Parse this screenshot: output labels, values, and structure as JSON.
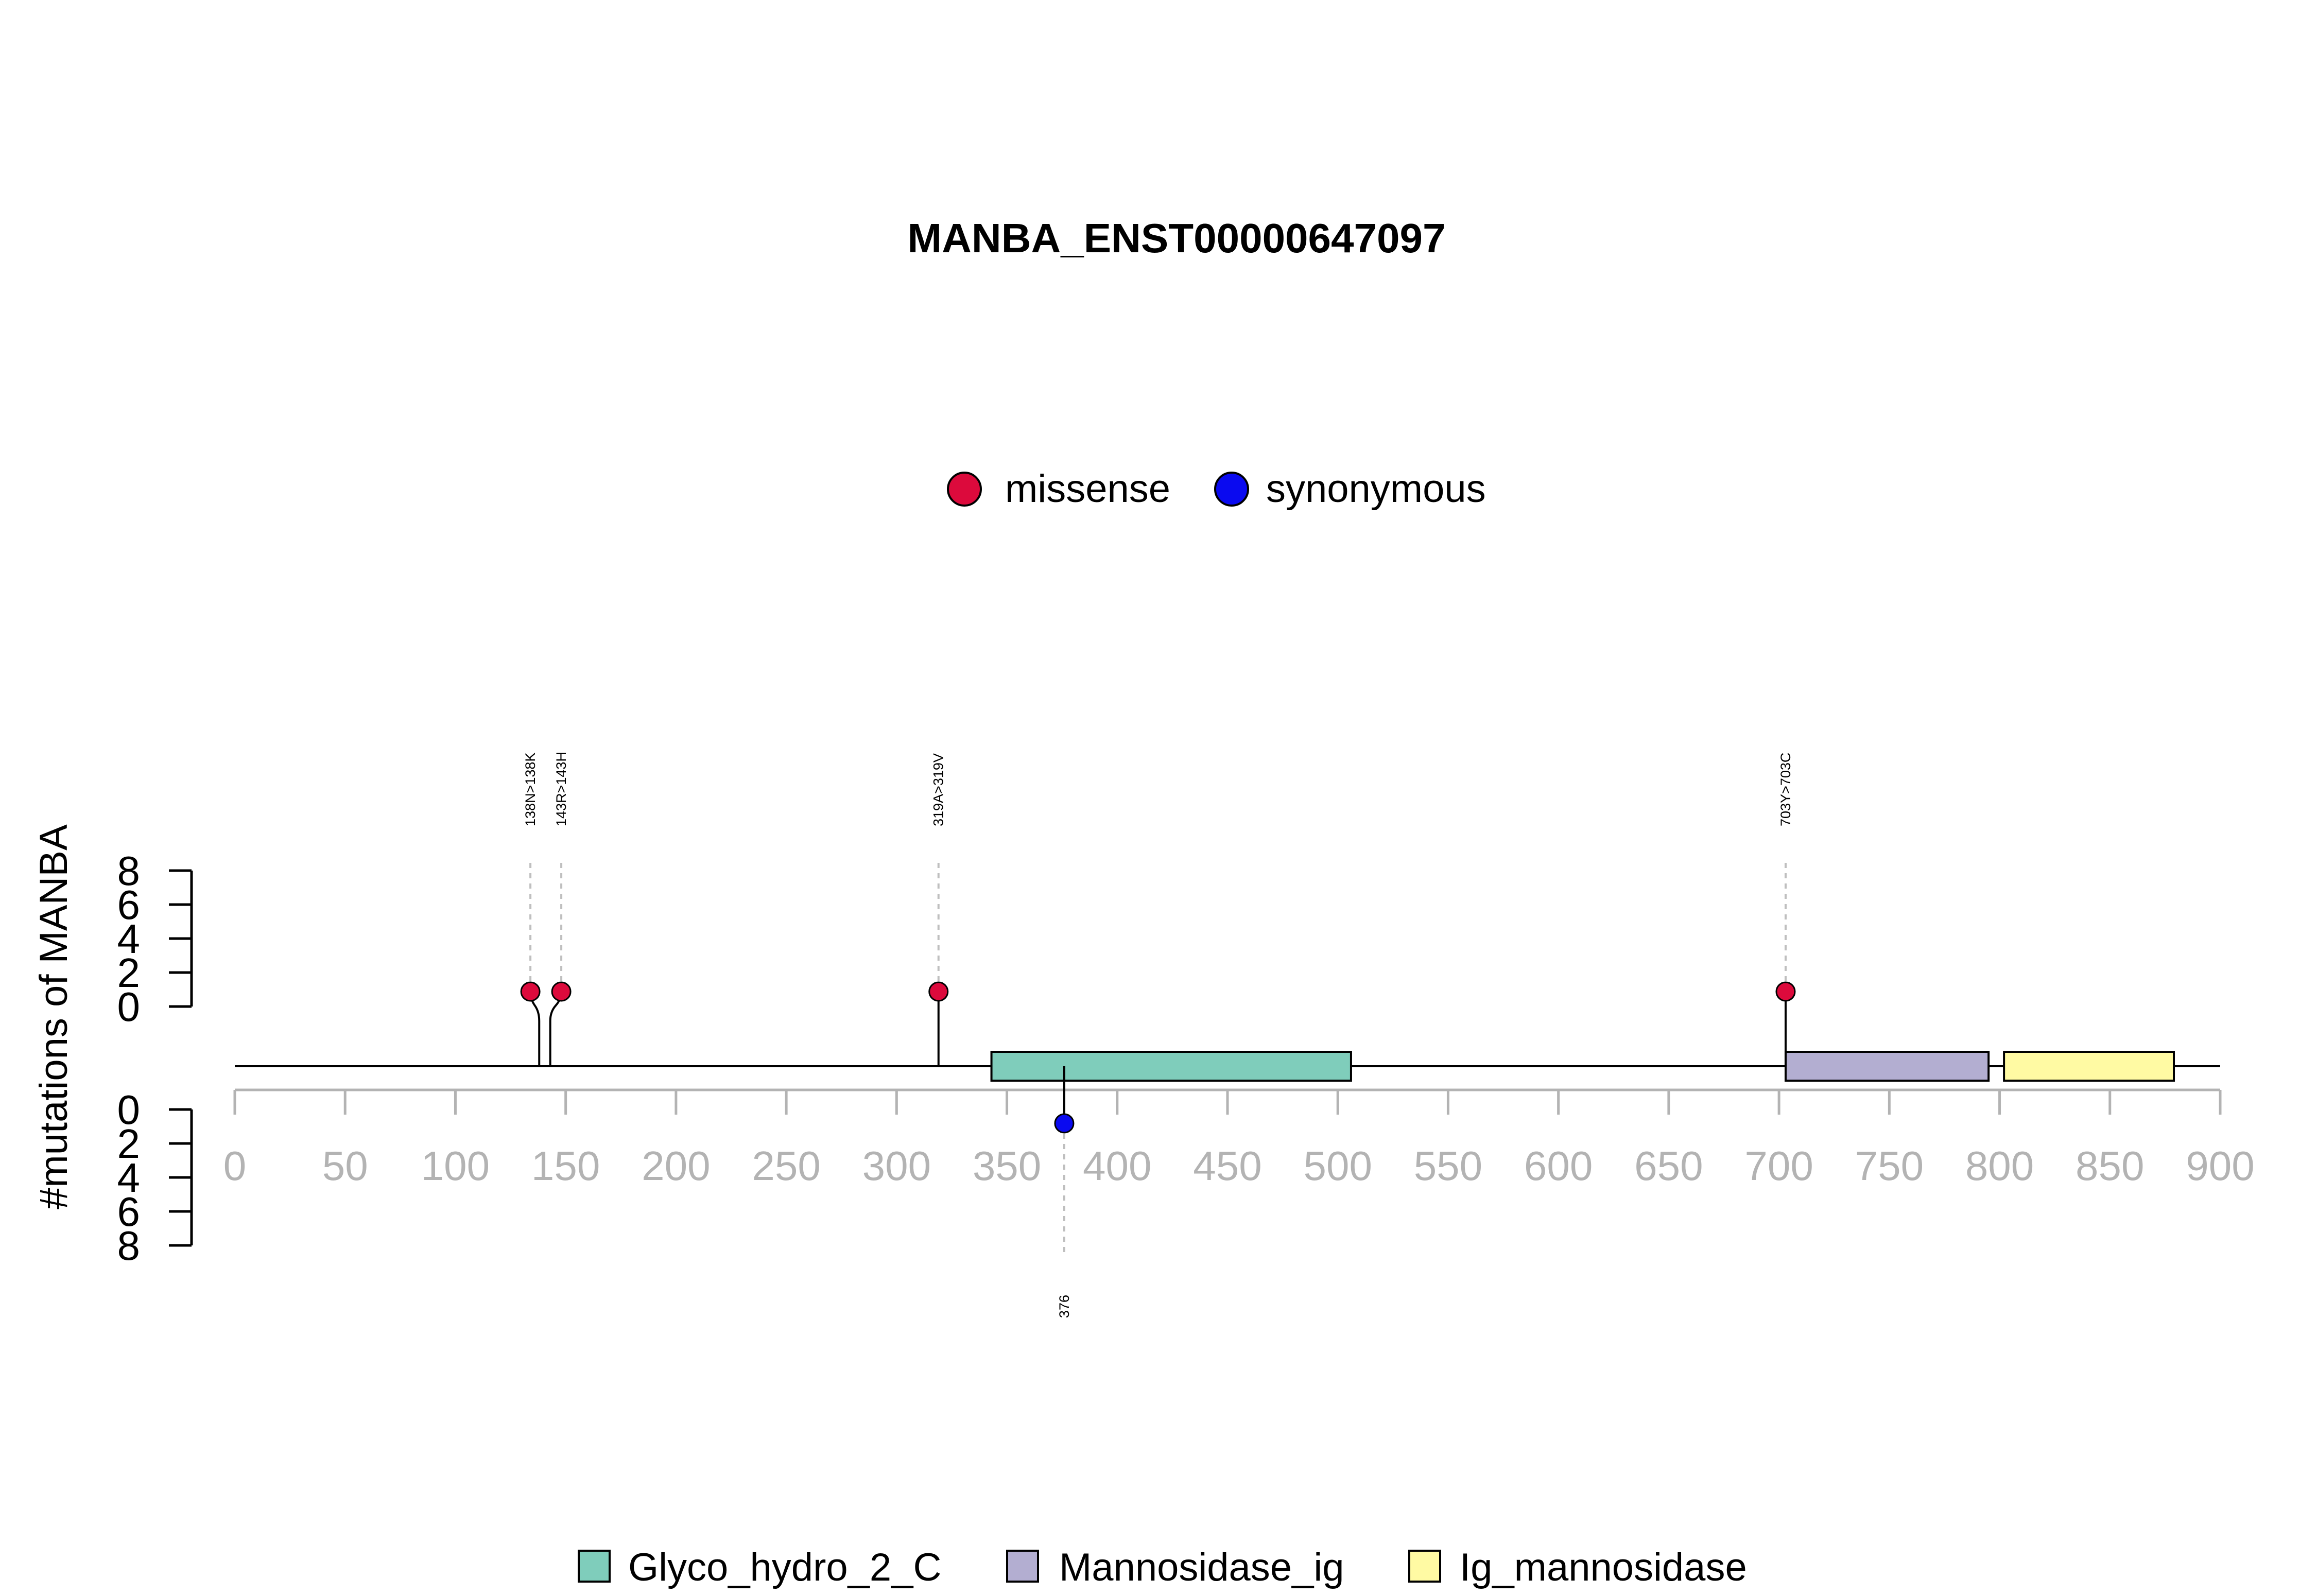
{
  "chart_data": {
    "type": "lollipop",
    "title": "MANBA_ENST00000647097",
    "ylabel": "#mutations of MANBA",
    "xlim": [
      0,
      900
    ],
    "x_ticks": [
      0,
      50,
      100,
      150,
      200,
      250,
      300,
      350,
      400,
      450,
      500,
      550,
      600,
      650,
      700,
      750,
      800,
      850,
      900
    ],
    "y_ticks_top": [
      0,
      2,
      4,
      6,
      8
    ],
    "y_ticks_bottom": [
      0,
      2,
      4,
      6,
      8
    ],
    "ylim": [
      0,
      8
    ],
    "protein_length": 900,
    "mutation_legend": [
      {
        "name": "missense",
        "color": "#DC0A3C"
      },
      {
        "name": "synonymous",
        "color": "#0A0AF0"
      }
    ],
    "domain_legend": [
      {
        "name": "Glyco_hydro_2_C",
        "color": "#7FCDBB"
      },
      {
        "name": "Mannosidase_ig",
        "color": "#B3AED1"
      },
      {
        "name": "Ig_mannosidase",
        "color": "#FFFAA3"
      }
    ],
    "domains": [
      {
        "name": "Glyco_hydro_2_C",
        "start": 343,
        "end": 506,
        "color": "#7FCDBB"
      },
      {
        "name": "Mannosidase_ig",
        "start": 703,
        "end": 795,
        "color": "#B3AED1"
      },
      {
        "name": "Ig_mannosidase",
        "start": 802,
        "end": 879,
        "color": "#FFFAA3"
      }
    ],
    "mutations": [
      {
        "label": "138N>138K",
        "position": 138,
        "display_position": 134,
        "count": 1,
        "type": "missense",
        "side": "top"
      },
      {
        "label": "143R>143H",
        "position": 143,
        "display_position": 148,
        "count": 1,
        "type": "missense",
        "side": "top"
      },
      {
        "label": "319A>319V",
        "position": 319,
        "display_position": 319,
        "count": 1,
        "type": "missense",
        "side": "top"
      },
      {
        "label": "703Y>703C",
        "position": 703,
        "display_position": 703,
        "count": 1,
        "type": "missense",
        "side": "top"
      },
      {
        "label": "376",
        "position": 376,
        "display_position": 376,
        "count": 1,
        "type": "synonymous",
        "side": "bottom"
      }
    ]
  }
}
